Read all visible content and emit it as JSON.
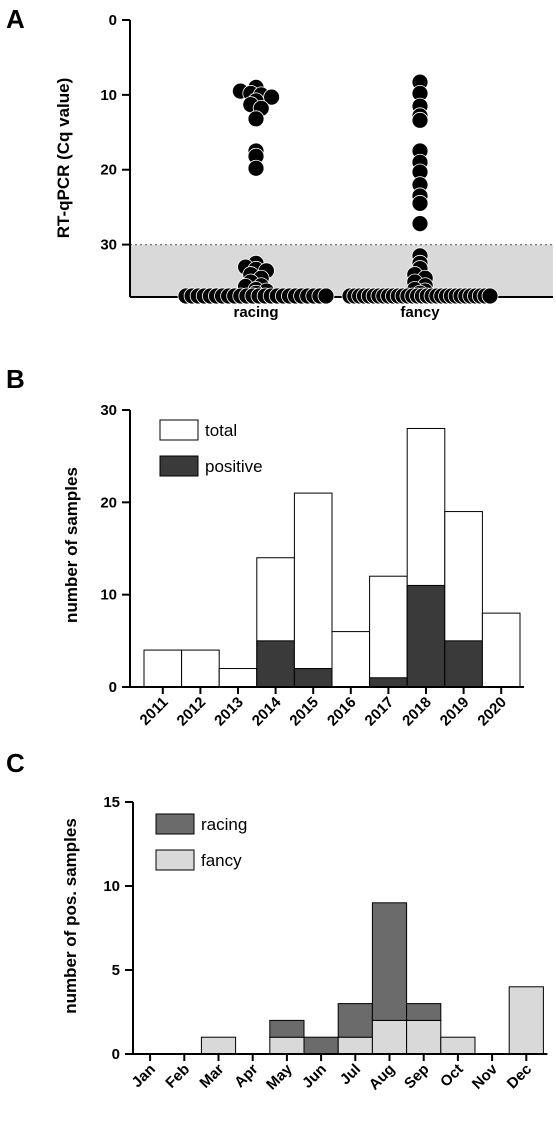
{
  "chart_data": [
    {
      "panel": "A",
      "type": "scatter",
      "ylabel": "RT-qPCR (Cq value)",
      "ylim": [
        0,
        37
      ],
      "y_inverted": true,
      "yticks": [
        "0",
        "10",
        "20",
        "30"
      ],
      "threshold": 30,
      "negative_value": 37,
      "categories": [
        "racing",
        "fancy"
      ],
      "groups": [
        {
          "name": "racing",
          "values": [
            9,
            9.5,
            9.8,
            10,
            10.3,
            10.8,
            11.3,
            11.8,
            13.2,
            17.5,
            18.2,
            19.8,
            32.5,
            33,
            33.3,
            33.5,
            34,
            34.5,
            35,
            35.5,
            35.6,
            36,
            36.2,
            36.5,
            37,
            37,
            37,
            37,
            37,
            37,
            37,
            37,
            37,
            37,
            37,
            37,
            37,
            37,
            37,
            37,
            37,
            37,
            37,
            37,
            37,
            37,
            37,
            37
          ]
        },
        {
          "name": "fancy",
          "values": [
            8.3,
            9.8,
            11.5,
            12.8,
            13.4,
            17.5,
            19,
            20.3,
            22,
            23.5,
            24.5,
            27.2,
            31.5,
            32.5,
            33.2,
            34,
            34.5,
            35,
            35.5,
            36,
            36.2,
            36.5,
            37,
            37,
            37,
            37,
            37,
            37,
            37,
            37,
            37,
            37,
            37,
            37,
            37,
            37,
            37,
            37,
            37,
            37,
            37,
            37,
            37,
            37,
            37,
            37,
            37,
            37,
            37,
            37,
            37,
            37
          ]
        }
      ]
    },
    {
      "panel": "B",
      "type": "bar",
      "ylabel": "number of samples",
      "ylim": [
        0,
        30
      ],
      "yticks": [
        "0",
        "10",
        "20",
        "30"
      ],
      "categories": [
        "2011",
        "2012",
        "2013",
        "2014",
        "2015",
        "2016",
        "2017",
        "2018",
        "2019",
        "2020"
      ],
      "series": [
        {
          "name": "total",
          "values": [
            4,
            4,
            2,
            14,
            21,
            6,
            12,
            28,
            19,
            8
          ],
          "color": "#ffffff"
        },
        {
          "name": "positive",
          "values": [
            0,
            0,
            0,
            5,
            2,
            0,
            1,
            11,
            5,
            0
          ],
          "color": "#3a3a3a"
        }
      ],
      "legend": "top-left"
    },
    {
      "panel": "C",
      "type": "bar",
      "stacked": true,
      "ylabel": "number of pos. samples",
      "ylim": [
        0,
        15
      ],
      "yticks": [
        "0",
        "5",
        "10",
        "15"
      ],
      "categories": [
        "Jan",
        "Feb",
        "Mar",
        "Apr",
        "May",
        "Jun",
        "Jul",
        "Aug",
        "Sep",
        "Oct",
        "Nov",
        "Dec"
      ],
      "series": [
        {
          "name": "racing",
          "values": [
            0,
            0,
            0,
            0,
            1,
            1,
            2,
            7,
            1,
            0,
            0,
            0
          ],
          "color": "#6b6b6b"
        },
        {
          "name": "fancy",
          "values": [
            0,
            0,
            1,
            0,
            1,
            0,
            1,
            2,
            2,
            1,
            0,
            4
          ],
          "color": "#d9d9d9"
        }
      ],
      "legend": "top-left"
    }
  ]
}
